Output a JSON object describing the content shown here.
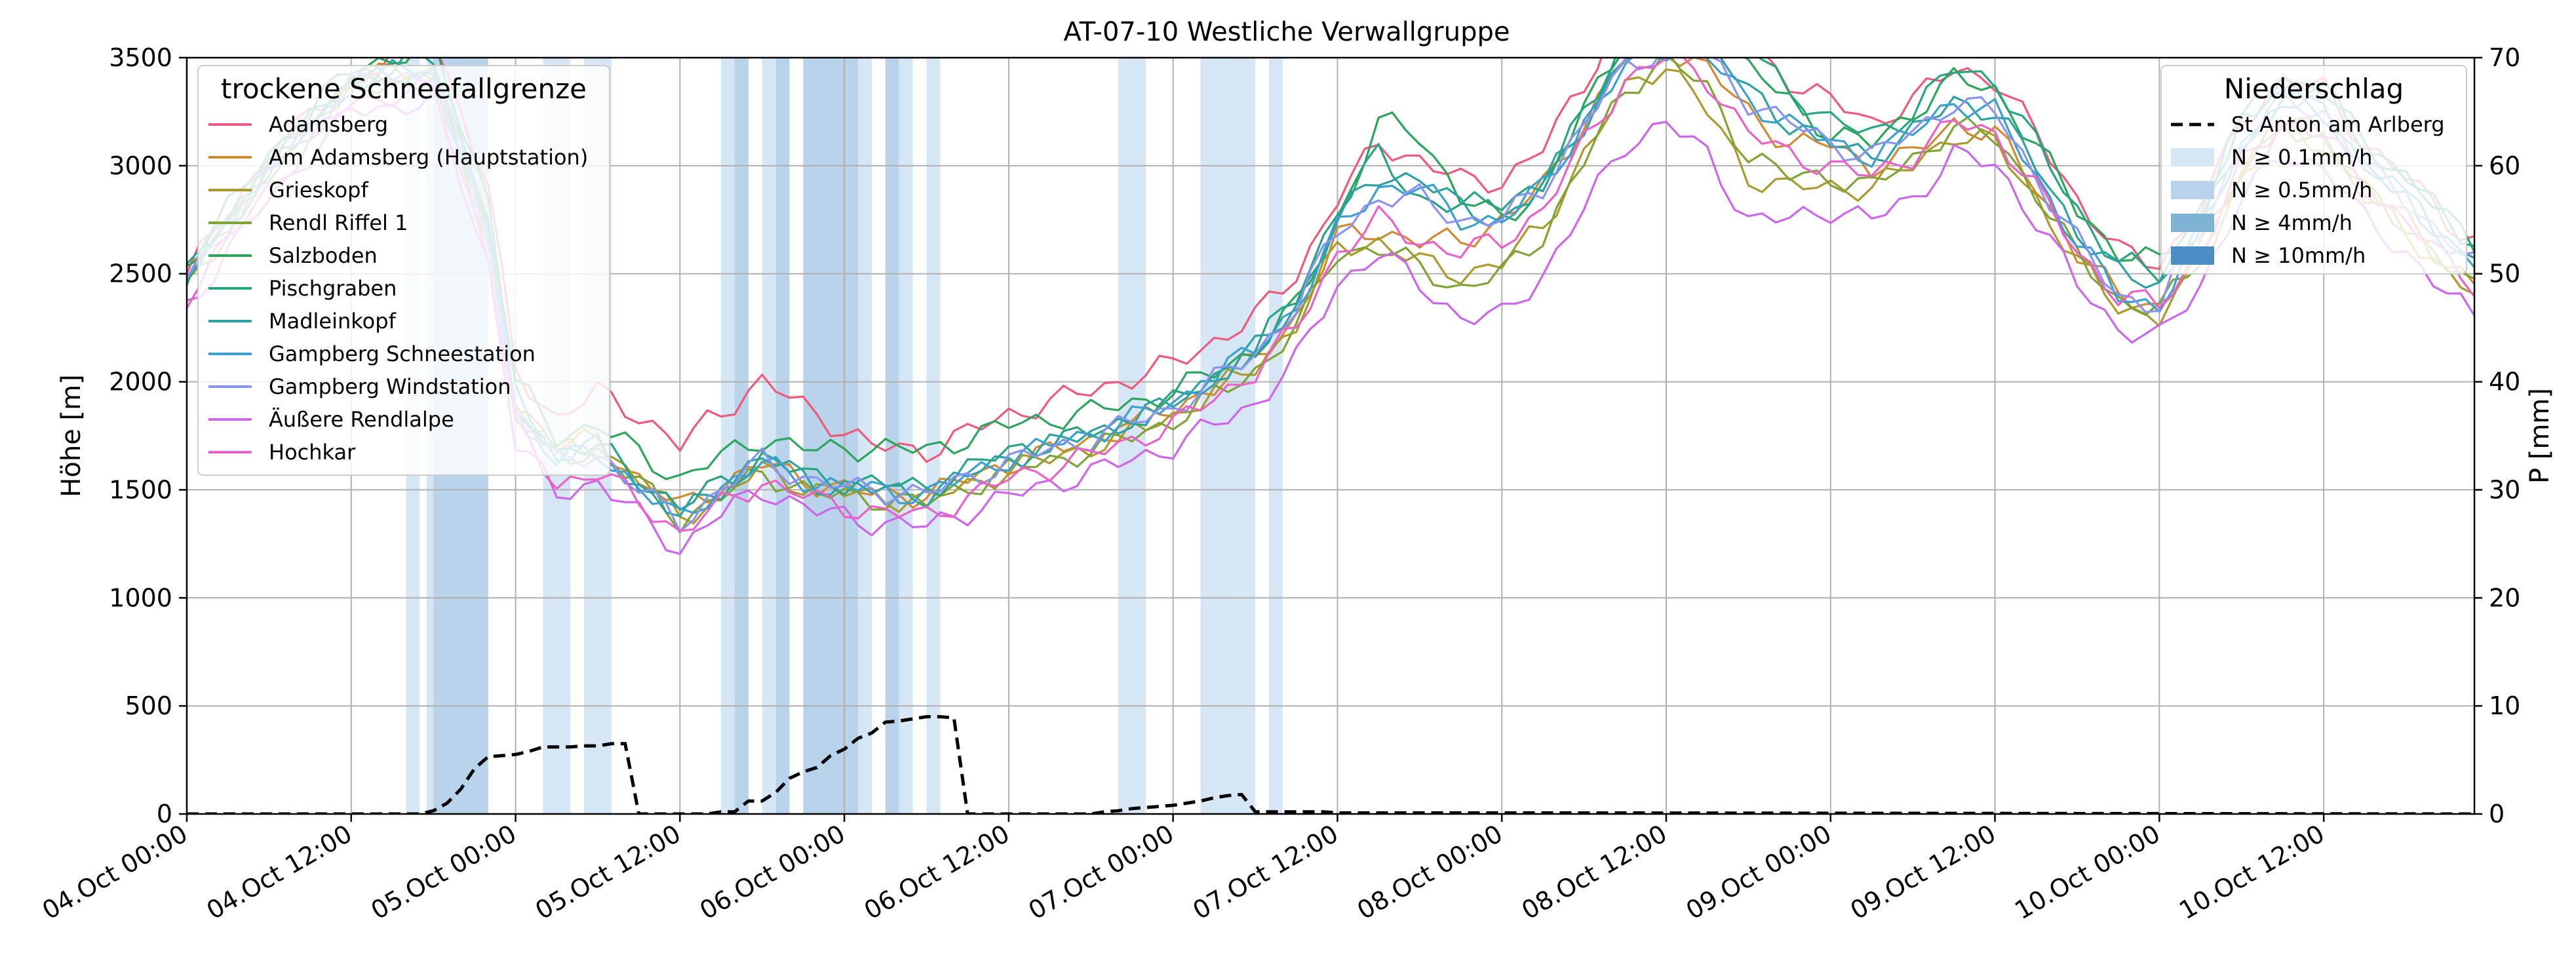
{
  "colors": {
    "n01": "#d6e6f4",
    "n05": "#b9d3ea",
    "n4": "#7fb3d6",
    "n10": "#4a8fc4"
  },
  "chart_data": {
    "type": "line",
    "title": "AT-07-10 Westliche Verwallgruppe",
    "ylabel_left": "Höhe [m]",
    "ylabel_right": "P [mm]",
    "ylim_left": [
      0,
      3500
    ],
    "ylim_right": [
      0,
      70
    ],
    "yticks_left": [
      0,
      500,
      1000,
      1500,
      2000,
      2500,
      3000,
      3500
    ],
    "yticks_right": [
      0,
      10,
      20,
      30,
      40,
      50,
      60,
      70
    ],
    "xlim_hours": [
      0,
      167
    ],
    "grid": true,
    "x_tick_labels": [
      "04.Oct 00:00",
      "04.Oct 12:00",
      "05.Oct 00:00",
      "05.Oct 12:00",
      "06.Oct 00:00",
      "06.Oct 12:00",
      "07.Oct 00:00",
      "07.Oct 12:00",
      "08.Oct 00:00",
      "08.Oct 12:00",
      "09.Oct 00:00",
      "09.Oct 12:00",
      "10.Oct 00:00",
      "10.Oct 12:00"
    ],
    "x_tick_hours": [
      0,
      12,
      24,
      36,
      48,
      60,
      72,
      84,
      96,
      108,
      120,
      132,
      144,
      156
    ],
    "legend_left": {
      "title": "trockene Schneefallgrenze",
      "position": "upper-left"
    },
    "legend_right": {
      "title": "Niederschlag",
      "position": "upper-right",
      "entries": [
        {
          "label": "St Anton am Arlberg",
          "style": "dashed"
        },
        {
          "label": "N ≥ 0.1mm/h",
          "color_key": "n01"
        },
        {
          "label": "N ≥ 0.5mm/h",
          "color_key": "n05"
        },
        {
          "label": "N ≥ 4mm/h",
          "color_key": "n4"
        },
        {
          "label": "N ≥ 10mm/h",
          "color_key": "n10"
        }
      ]
    },
    "baseline_keys": {
      "hours": [
        0,
        6,
        12,
        18,
        22,
        24,
        27,
        30,
        33,
        36,
        38,
        42,
        46,
        50,
        54,
        60,
        66,
        72,
        78,
        81,
        84,
        87,
        90,
        93,
        96,
        99,
        102,
        105,
        108,
        111,
        114,
        117,
        120,
        123,
        126,
        129,
        132,
        135,
        138,
        141,
        144,
        147,
        150,
        153,
        156,
        159,
        162,
        165,
        167
      ],
      "values": [
        2500,
        3000,
        3400,
        3450,
        2700,
        1900,
        1650,
        1700,
        1550,
        1400,
        1470,
        1620,
        1530,
        1500,
        1480,
        1650,
        1760,
        1900,
        2150,
        2350,
        2700,
        2900,
        2850,
        2750,
        2750,
        2900,
        3200,
        3500,
        3600,
        3550,
        3350,
        3200,
        3100,
        3050,
        3150,
        3300,
        3250,
        3000,
        2700,
        2500,
        2450,
        2700,
        3100,
        3300,
        3250,
        3000,
        2850,
        2650,
        2550
      ]
    },
    "series": [
      {
        "name": "Adamsberg",
        "color": "#ee5a7c",
        "offsets": [
          0,
          50,
          0,
          150,
          200,
          150,
          180,
          250,
          300,
          300,
          350,
          380,
          320,
          200,
          200,
          200,
          200,
          180,
          150,
          150,
          150,
          200,
          180,
          180,
          180,
          180,
          180,
          250,
          200,
          150,
          200,
          200,
          200,
          150,
          150,
          150,
          150,
          150,
          150,
          100,
          100,
          100,
          100,
          100,
          100,
          100,
          100,
          100,
          100
        ]
      },
      {
        "name": "Am Adamsberg (Hauptstation)",
        "color": "#d08a33",
        "offsets": [
          0,
          0,
          0,
          0,
          0,
          20,
          50,
          30,
          0,
          20,
          20,
          0,
          0,
          -20,
          0,
          -30,
          -30,
          -30,
          -50,
          -50,
          -30,
          -200,
          -200,
          -100,
          0,
          0,
          0,
          0,
          -50,
          -100,
          -100,
          -100,
          0,
          -50,
          -100,
          -100,
          -100,
          -100,
          -100,
          -100,
          -100,
          -100,
          -100,
          -100,
          -100,
          -100,
          -100,
          -100,
          -100
        ]
      },
      {
        "name": "Grieskopf",
        "color": "#a99a2c",
        "offsets": [
          -20,
          -20,
          -20,
          -20,
          -20,
          -20,
          20,
          0,
          0,
          -30,
          -30,
          -30,
          -30,
          -30,
          -30,
          -60,
          -60,
          -60,
          -80,
          -80,
          -80,
          -250,
          -300,
          -250,
          -200,
          -180,
          -150,
          -150,
          -120,
          -300,
          -400,
          -300,
          -200,
          -150,
          -150,
          -150,
          -150,
          -150,
          -150,
          -150,
          -150,
          -150,
          -150,
          -150,
          -150,
          -150,
          -150,
          -150,
          -150
        ]
      },
      {
        "name": "Rendl Riffel 1",
        "color": "#7fa335",
        "offsets": [
          -50,
          -50,
          -50,
          -50,
          -50,
          -50,
          0,
          -20,
          -20,
          -40,
          -40,
          -40,
          -50,
          -40,
          -40,
          -60,
          -80,
          -80,
          -100,
          -100,
          -100,
          -280,
          -320,
          -320,
          -250,
          -220,
          -180,
          -150,
          -100,
          -200,
          -300,
          -250,
          -150,
          -150,
          -120,
          -120,
          -120,
          -120,
          -120,
          -120,
          -120,
          -120,
          -120,
          -120,
          -120,
          -120,
          -120,
          -120,
          -120
        ]
      },
      {
        "name": "Salzboden",
        "color": "#2aa55b",
        "offsets": [
          50,
          50,
          50,
          100,
          150,
          100,
          100,
          100,
          120,
          150,
          150,
          120,
          150,
          200,
          200,
          150,
          100,
          50,
          0,
          0,
          50,
          300,
          300,
          100,
          0,
          0,
          50,
          100,
          150,
          150,
          100,
          100,
          50,
          50,
          100,
          100,
          100,
          100,
          100,
          100,
          100,
          100,
          100,
          100,
          100,
          100,
          100,
          100,
          100
        ]
      },
      {
        "name": "Pischgraben",
        "color": "#28a383",
        "offsets": [
          0,
          0,
          0,
          50,
          50,
          30,
          30,
          0,
          0,
          20,
          20,
          30,
          20,
          30,
          30,
          30,
          0,
          0,
          0,
          50,
          100,
          150,
          0,
          50,
          100,
          0,
          50,
          100,
          100,
          150,
          200,
          150,
          100,
          100,
          100,
          150,
          150,
          100,
          100,
          50,
          50,
          80,
          100,
          100,
          100,
          100,
          100,
          100,
          100
        ]
      },
      {
        "name": "Madleinkopf",
        "color": "#2ea2a2",
        "offsets": [
          0,
          0,
          0,
          0,
          0,
          0,
          0,
          0,
          -30,
          -30,
          0,
          30,
          0,
          0,
          0,
          0,
          0,
          0,
          0,
          0,
          50,
          50,
          100,
          50,
          0,
          0,
          0,
          0,
          0,
          0,
          0,
          0,
          0,
          0,
          0,
          0,
          0,
          0,
          0,
          0,
          0,
          0,
          0,
          0,
          0,
          0,
          0,
          0,
          0
        ]
      },
      {
        "name": "Gampberg Schneestation",
        "color": "#3aa0ce",
        "offsets": [
          -20,
          -20,
          -20,
          -20,
          -20,
          -30,
          -20,
          -20,
          -40,
          -40,
          0,
          0,
          0,
          0,
          0,
          0,
          0,
          0,
          0,
          0,
          0,
          0,
          50,
          0,
          0,
          0,
          0,
          -50,
          -50,
          -50,
          -50,
          0,
          0,
          0,
          0,
          0,
          0,
          -50,
          -50,
          -100,
          -100,
          0,
          0,
          0,
          0,
          0,
          0,
          0,
          0
        ]
      },
      {
        "name": "Gampberg Windstation",
        "color": "#8b93f0",
        "offsets": [
          -20,
          -20,
          -20,
          -20,
          -20,
          -30,
          -30,
          -30,
          -50,
          -50,
          -20,
          20,
          0,
          0,
          0,
          -20,
          -20,
          -20,
          -20,
          0,
          0,
          -50,
          0,
          0,
          0,
          0,
          0,
          -50,
          -50,
          -50,
          -50,
          0,
          0,
          0,
          0,
          0,
          0,
          -50,
          -50,
          -100,
          -100,
          0,
          0,
          0,
          0,
          0,
          0,
          0,
          0
        ]
      },
      {
        "name": "Äußere Rendlalpe",
        "color": "#cc66ea",
        "offsets": [
          -150,
          -150,
          -150,
          -150,
          -150,
          -180,
          -170,
          -160,
          -170,
          -180,
          -120,
          -120,
          -130,
          -150,
          -150,
          -180,
          -180,
          -200,
          -250,
          -250,
          -250,
          -300,
          -400,
          -450,
          -450,
          -400,
          -400,
          -400,
          -400,
          -500,
          -600,
          -450,
          -300,
          -300,
          -300,
          -250,
          -250,
          -250,
          -250,
          -250,
          -250,
          -250,
          -250,
          -250,
          -250,
          -250,
          -250,
          -250,
          -250
        ]
      },
      {
        "name": "Hochkar",
        "color": "#e862c9",
        "offsets": [
          -100,
          -100,
          -100,
          -100,
          -100,
          -120,
          -120,
          -120,
          -100,
          -100,
          -80,
          -80,
          -80,
          -100,
          -100,
          -100,
          -100,
          -100,
          -100,
          -100,
          -100,
          -150,
          -200,
          -150,
          -100,
          -100,
          -100,
          -100,
          -100,
          -150,
          -200,
          -150,
          -100,
          -100,
          -100,
          -100,
          -100,
          -100,
          -100,
          -100,
          -100,
          -100,
          -100,
          -100,
          -100,
          -100,
          -100,
          -100,
          -100
        ]
      }
    ],
    "precipitation": {
      "station": "St Anton am Arlberg",
      "hours": [
        0,
        16,
        17,
        18,
        19,
        20,
        21,
        22,
        23,
        24,
        25,
        26,
        27,
        28,
        29,
        30,
        31,
        32,
        33,
        34,
        35,
        36,
        37,
        38,
        39,
        40,
        41,
        42,
        43,
        44,
        45,
        46,
        47,
        48,
        49,
        50,
        51,
        52,
        53,
        54,
        55,
        56,
        57,
        58,
        59,
        60,
        61,
        62,
        63,
        64,
        65,
        66,
        67,
        68,
        69,
        70,
        71,
        72,
        73,
        74,
        75,
        76,
        77,
        78,
        79,
        80,
        81,
        82,
        83,
        84,
        100,
        167
      ],
      "values_mm": [
        0,
        0,
        0,
        0.3,
        1.0,
        2.3,
        4.2,
        5.3,
        5.4,
        5.5,
        5.8,
        6.2,
        6.2,
        6.2,
        6.3,
        6.3,
        6.5,
        6.5,
        0,
        0,
        0,
        0,
        0,
        0,
        0.2,
        0.2,
        1.2,
        1.2,
        2.0,
        3.3,
        3.9,
        4.3,
        5.4,
        6.0,
        7.0,
        7.5,
        8.5,
        8.6,
        8.8,
        9.0,
        9.0,
        8.9,
        0,
        0,
        0,
        0,
        0,
        0,
        0,
        0,
        0,
        0,
        0.2,
        0.3,
        0.5,
        0.6,
        0.7,
        0.8,
        1.0,
        1.2,
        1.5,
        1.7,
        1.8,
        0.2,
        0.2,
        0.2,
        0.2,
        0.2,
        0.2,
        0.1,
        0.1,
        0.0
      ]
    },
    "precip_bands": [
      {
        "start": 16,
        "end": 17,
        "level": "n01"
      },
      {
        "start": 17.5,
        "end": 20,
        "level": "n01"
      },
      {
        "start": 18,
        "end": 22,
        "level": "n05"
      },
      {
        "start": 26,
        "end": 28,
        "level": "n01"
      },
      {
        "start": 29,
        "end": 31,
        "level": "n01"
      },
      {
        "start": 39,
        "end": 41,
        "level": "n01"
      },
      {
        "start": 40,
        "end": 41,
        "level": "n05"
      },
      {
        "start": 42,
        "end": 43,
        "level": "n01"
      },
      {
        "start": 43,
        "end": 44,
        "level": "n05"
      },
      {
        "start": 45,
        "end": 50,
        "level": "n05"
      },
      {
        "start": 49,
        "end": 50,
        "level": "n01"
      },
      {
        "start": 51,
        "end": 52,
        "level": "n05"
      },
      {
        "start": 52,
        "end": 53,
        "level": "n01"
      },
      {
        "start": 54,
        "end": 55,
        "level": "n01"
      },
      {
        "start": 68,
        "end": 70,
        "level": "n01"
      },
      {
        "start": 74,
        "end": 78,
        "level": "n01"
      },
      {
        "start": 79,
        "end": 80,
        "level": "n01"
      }
    ]
  }
}
